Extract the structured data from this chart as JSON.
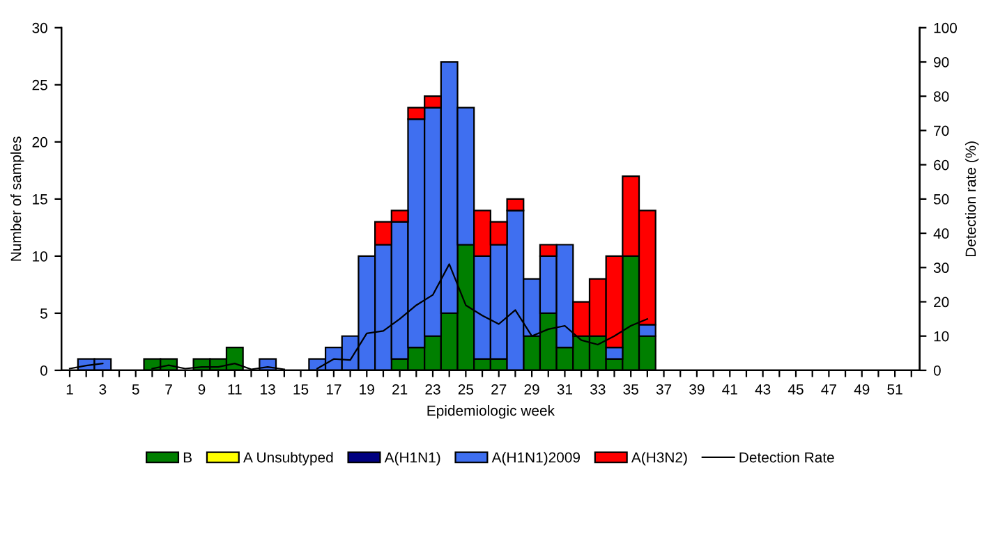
{
  "chart_data": {
    "type": "bar",
    "stacked": true,
    "xlabel": "Epidemiologic week",
    "ylabel": "Number of samples",
    "y2label": "Detection rate (%)",
    "categories": [
      "1",
      null,
      "3",
      null,
      "5",
      null,
      "7",
      null,
      "9",
      null,
      "11",
      null,
      "13",
      null,
      "15",
      null,
      "17",
      null,
      "19",
      null,
      "21",
      null,
      "23",
      null,
      "25",
      null,
      "27",
      null,
      "29",
      null,
      "31",
      null,
      "33",
      null,
      "35",
      null,
      "37",
      null,
      "39",
      null,
      "41",
      null,
      "43",
      null,
      "45",
      null,
      "47",
      null,
      "49",
      null,
      "51",
      null
    ],
    "ylim": [
      0,
      30
    ],
    "yticks": [
      0,
      5,
      10,
      15,
      20,
      25,
      30
    ],
    "y2lim": [
      0,
      100
    ],
    "y2ticks": [
      0,
      10,
      20,
      30,
      40,
      50,
      60,
      70,
      80,
      90,
      100
    ],
    "grid": false,
    "legend": "bottom",
    "series": [
      {
        "name": "B",
        "color": "#007f00",
        "values": [
          0,
          0,
          0,
          0,
          0,
          1,
          1,
          0,
          1,
          1,
          2,
          0,
          0,
          0,
          0,
          0,
          0,
          0,
          0,
          0,
          1,
          2,
          3,
          5,
          11,
          1,
          1,
          0,
          3,
          5,
          2,
          3,
          3,
          1,
          10,
          3,
          0,
          0,
          0,
          0,
          0,
          0,
          0,
          0,
          0,
          0,
          0,
          0,
          0,
          0,
          0,
          0
        ]
      },
      {
        "name": "A Unsubtyped",
        "color": "#ffff00",
        "values": [
          0,
          0,
          0,
          0,
          0,
          0,
          0,
          0,
          0,
          0,
          0,
          0,
          0,
          0,
          0,
          0,
          0,
          0,
          0,
          0,
          0,
          0,
          0,
          0,
          0,
          0,
          0,
          0,
          0,
          0,
          0,
          0,
          0,
          0,
          0,
          0,
          0,
          0,
          0,
          0,
          0,
          0,
          0,
          0,
          0,
          0,
          0,
          0,
          0,
          0,
          0,
          0
        ]
      },
      {
        "name": "A(H1N1)",
        "color": "#000080",
        "values": [
          0,
          0,
          0,
          0,
          0,
          0,
          0,
          0,
          0,
          0,
          0,
          0,
          0,
          0,
          0,
          0,
          0,
          0,
          0,
          0,
          0,
          0,
          0,
          0,
          0,
          0,
          0,
          0,
          0,
          0,
          0,
          0,
          0,
          0,
          0,
          0,
          0,
          0,
          0,
          0,
          0,
          0,
          0,
          0,
          0,
          0,
          0,
          0,
          0,
          0,
          0,
          0
        ]
      },
      {
        "name": "A(H1N1)2009",
        "color": "#3f6ff0",
        "values": [
          0,
          1,
          1,
          0,
          0,
          0,
          0,
          0,
          0,
          0,
          0,
          0,
          1,
          0,
          0,
          1,
          2,
          3,
          10,
          11,
          12,
          20,
          20,
          22,
          12,
          9,
          10,
          14,
          5,
          5,
          9,
          0,
          0,
          1,
          0,
          1,
          0,
          0,
          0,
          0,
          0,
          0,
          0,
          0,
          0,
          0,
          0,
          0,
          0,
          0,
          0,
          0
        ]
      },
      {
        "name": "A(H3N2)",
        "color": "#ff0000",
        "values": [
          0,
          0,
          0,
          0,
          0,
          0,
          0,
          0,
          0,
          0,
          0,
          0,
          0,
          0,
          0,
          0,
          0,
          0,
          0,
          2,
          1,
          1,
          1,
          0,
          0,
          4,
          2,
          1,
          0,
          1,
          0,
          3,
          5,
          8,
          7,
          10,
          0,
          0,
          0,
          0,
          0,
          0,
          0,
          0,
          0,
          0,
          0,
          0,
          0,
          0,
          0,
          0
        ]
      },
      {
        "name": "Detection Rate",
        "type": "line",
        "axis": "y2",
        "color": "#000000",
        "values": [
          0.5,
          1.4,
          2,
          null,
          null,
          0.5,
          1.5,
          0.5,
          1,
          1,
          2,
          0.3,
          1,
          0.3,
          null,
          0.5,
          3.3,
          3,
          10.8,
          11.5,
          15,
          19,
          22,
          31,
          19,
          16,
          13.5,
          17.6,
          10,
          12,
          13,
          8.8,
          7.5,
          10,
          13,
          15,
          null,
          null,
          null,
          null,
          null,
          null,
          null,
          null,
          null,
          null,
          null,
          null,
          null,
          null,
          null,
          null
        ]
      }
    ]
  }
}
